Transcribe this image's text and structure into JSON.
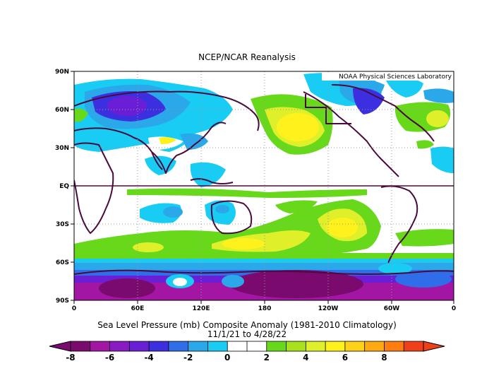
{
  "header": {
    "title": "NCEP/NCAR Reanalysis",
    "credit": "NOAA Physical Sciences Laboratory"
  },
  "caption": {
    "line1": "Sea Level Pressure (mb) Composite Anomaly (1981-2010 Climatology)",
    "line2": "11/1/21  to 4/28/22"
  },
  "axes": {
    "lat_labels": [
      "90N",
      "60N",
      "30N",
      "EQ",
      "30S",
      "60S",
      "90S"
    ],
    "lon_labels": [
      "0",
      "60E",
      "120E",
      "180",
      "120W",
      "60W",
      "0"
    ]
  },
  "colorbar": {
    "labels": [
      "-8",
      "-6",
      "-4",
      "-2",
      "0",
      "2",
      "4",
      "6",
      "8"
    ],
    "colors": [
      "#7b0a6e",
      "#a316a3",
      "#8a1bc4",
      "#6a1fd6",
      "#3c2fe0",
      "#2f6ee8",
      "#2aa8ea",
      "#18ccf4",
      "#ffffff",
      "#ffffff",
      "#67d81a",
      "#a8e21f",
      "#dff02b",
      "#fff21c",
      "#ffd21a",
      "#ffaa12",
      "#ff7d0e",
      "#f0401a"
    ]
  },
  "colors": {
    "coast": "#4a0a3c",
    "grid": "#999999"
  }
}
